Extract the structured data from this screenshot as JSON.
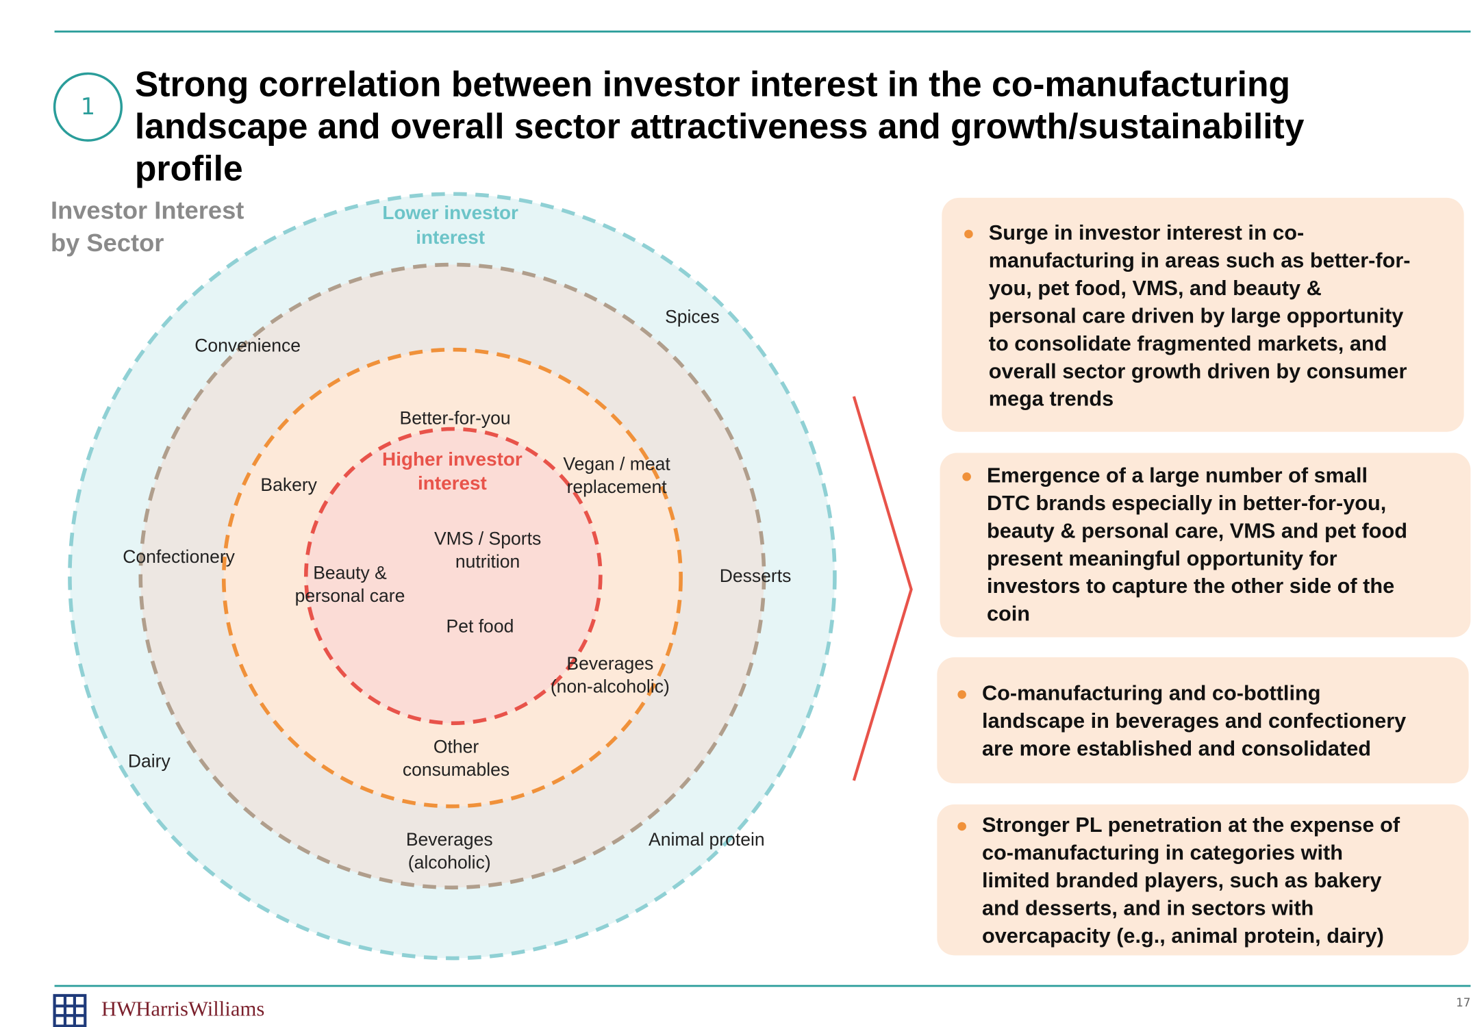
{
  "header": {
    "number": "1",
    "title": [
      "Strong correlation between investor interest in the co-manufacturing",
      "landscape and overall sector attractiveness and growth/sustainability",
      "profile"
    ]
  },
  "diagram": {
    "title": [
      "Investor Interest",
      "by Sector"
    ],
    "outer_label": [
      "Lower investor",
      "interest"
    ],
    "inner_label": [
      "Higher investor",
      "interest"
    ],
    "sectors": [
      {
        "lines": [
          "Spices"
        ]
      },
      {
        "lines": [
          "Convenience"
        ]
      },
      {
        "lines": [
          "Better-for-you"
        ]
      },
      {
        "lines": [
          "Vegan / meat",
          "replacement"
        ]
      },
      {
        "lines": [
          "Bakery"
        ]
      },
      {
        "lines": [
          "VMS / Sports",
          "nutrition"
        ]
      },
      {
        "lines": [
          "Confectionery"
        ]
      },
      {
        "lines": [
          "Beauty &",
          "personal care"
        ]
      },
      {
        "lines": [
          "Desserts"
        ]
      },
      {
        "lines": [
          "Pet food"
        ]
      },
      {
        "lines": [
          "Beverages",
          "(non-alcoholic)"
        ]
      },
      {
        "lines": [
          "Other",
          "consumables"
        ]
      },
      {
        "lines": [
          "Dairy"
        ]
      },
      {
        "lines": [
          "Beverages",
          "(alcoholic)"
        ]
      },
      {
        "lines": [
          "Animal protein"
        ]
      }
    ]
  },
  "bullets": [
    [
      "Surge in investor interest in co-",
      "manufacturing in areas such as better-for-",
      "you, pet food, VMS, and beauty &",
      "personal care driven by large opportunity",
      "to consolidate fragmented markets, and",
      "overall sector growth driven by consumer",
      "mega trends"
    ],
    [
      "Emergence of a large number of small",
      "DTC brands especially in better-for-you,",
      "beauty & personal care, VMS and pet food",
      "present meaningful opportunity for",
      "investors to capture the other side of the",
      "coin"
    ],
    [
      "Co-manufacturing and co-bottling",
      "landscape in beverages and confectionery",
      "are more established and consolidated"
    ],
    [
      "Stronger PL penetration at the expense of",
      "co-manufacturing in categories with",
      "limited branded players, such as bakery",
      "and desserts, and in sectors with",
      "overcapacity (e.g., animal protein, dairy)"
    ]
  ],
  "footer": {
    "logo": "HarrisWilliams",
    "page": "17"
  }
}
